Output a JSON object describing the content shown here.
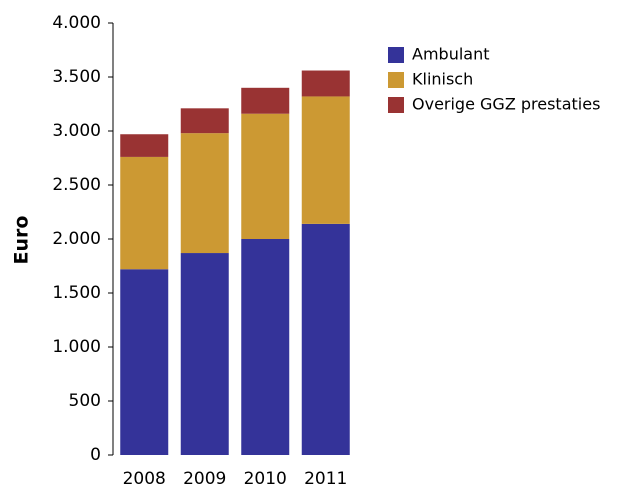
{
  "chart_data": {
    "type": "stacked_bar",
    "ylabel": "Euro",
    "categories": [
      "2008",
      "2009",
      "2010",
      "2011"
    ],
    "series": [
      {
        "name": "Ambulant",
        "color": "#343399",
        "values": [
          1720,
          1870,
          2000,
          2140
        ]
      },
      {
        "name": "Klinisch",
        "color": "#cc9933",
        "values": [
          1040,
          1110,
          1160,
          1180
        ]
      },
      {
        "name": "Overige GGZ prestaties",
        "color": "#993333",
        "values": [
          210,
          230,
          240,
          240
        ]
      }
    ],
    "ylim": [
      0,
      4000
    ],
    "yticks": [
      0,
      500,
      {
        "value": 1000,
        "label": "1.000"
      },
      {
        "value": 1500,
        "label": "1.500"
      },
      {
        "value": 2000,
        "label": "2.000"
      },
      {
        "value": 2500,
        "label": "2.500"
      },
      {
        "value": 3000,
        "label": "3.000"
      },
      {
        "value": 3500,
        "label": "3.500"
      },
      {
        "value": 4000,
        "label": "4.000"
      }
    ],
    "grid": false,
    "legend": "right"
  }
}
